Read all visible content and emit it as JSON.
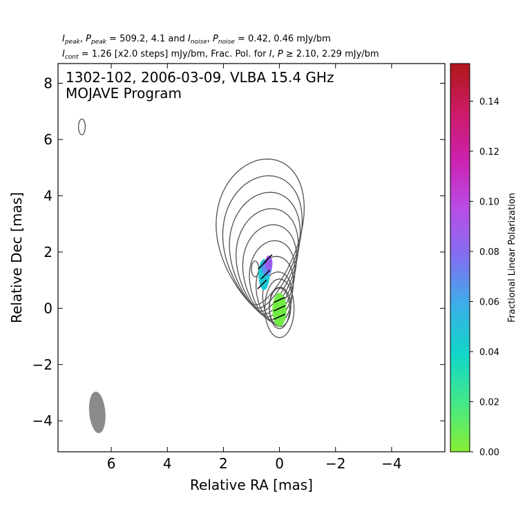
{
  "header": {
    "i_peak_label": "I",
    "i_peak_sub": "peak",
    "p_peak_label": "P",
    "p_peak_sub": "peak",
    "peak_values": "509.2, 4.1",
    "and_text": "and",
    "i_noise_label": "I",
    "i_noise_sub": "noise",
    "p_noise_label": "P",
    "p_noise_sub": "noise",
    "noise_values": "0.42, 0.46 mJy/bm",
    "i_cont_label": "I",
    "i_cont_sub": "cont",
    "cont_text": "= 1.26 [x2.0 steps] mJy/bm, Frac. Pol. for",
    "frac_i": "I",
    "frac_p": "P",
    "frac_values": "2.10, 2.29 mJy/bm"
  },
  "chart_data": {
    "type": "contour",
    "title_line1": "1302-102, 2006-03-09, VLBA 15.4 GHz",
    "title_line2": "MOJAVE Program",
    "xlabel": "Relative RA [mas]",
    "ylabel": "Relative Dec [mas]",
    "xlim": [
      7.9,
      -5.9
    ],
    "ylim": [
      -5.1,
      8.7
    ],
    "x_ticks": [
      6,
      4,
      2,
      0,
      -2,
      -4
    ],
    "x_tick_labels": [
      "6",
      "4",
      "2",
      "0",
      "−2",
      "−4"
    ],
    "y_ticks": [
      8,
      6,
      4,
      2,
      0,
      -2,
      -4
    ],
    "y_tick_labels": [
      "8",
      "6",
      "4",
      "2",
      "0",
      "−2",
      "−4"
    ],
    "colorbar": {
      "label": "Fractional Linear Polarization",
      "min": 0.0,
      "max": 0.155,
      "ticks": [
        0.0,
        0.02,
        0.04,
        0.06,
        0.08,
        0.1,
        0.12,
        0.14
      ],
      "tick_labels": [
        "0.00",
        "0.02",
        "0.04",
        "0.06",
        "0.08",
        "0.10",
        "0.12",
        "0.14"
      ],
      "colors": [
        "#88ee33",
        "#44e888",
        "#11d6c8",
        "#3ab0e8",
        "#8070f0",
        "#b84ee8",
        "#cc22b0",
        "#cc1a66",
        "#b01818"
      ]
    },
    "contour_color": "#505050",
    "core": [
      0.0,
      0.0
    ],
    "secondary_component": [
      0.9,
      1.4
    ],
    "beam": {
      "center": [
        6.5,
        -3.7
      ],
      "major_mas": 1.45,
      "minor_mas": 0.55,
      "pa_deg": -5,
      "color": "#8a8a8a"
    },
    "extra_contour": {
      "center": [
        7.05,
        6.45
      ],
      "major_mas": 0.28,
      "minor_mas": 0.12
    },
    "polarization_regions": [
      {
        "name": "core",
        "center": [
          0.0,
          -0.05
        ],
        "rx": 0.25,
        "ry": 0.6,
        "frac_pol": 0.005,
        "color": "#72ec44"
      },
      {
        "name": "jet-cyan",
        "center": [
          0.55,
          1.2
        ],
        "rx": 0.2,
        "ry": 0.55,
        "frac_pol": 0.045,
        "color": "#1cc9d6"
      },
      {
        "name": "jet-blue",
        "center": [
          0.45,
          1.45
        ],
        "rx": 0.18,
        "ry": 0.3,
        "frac_pol": 0.07,
        "color": "#5f8ef2"
      },
      {
        "name": "jet-violet",
        "center": [
          0.38,
          1.6
        ],
        "rx": 0.13,
        "ry": 0.28,
        "frac_pol": 0.09,
        "color": "#9a5cf0"
      }
    ],
    "evpa_vectors": [
      {
        "x": 0.0,
        "y": 0.3,
        "angle_deg": -25
      },
      {
        "x": 0.0,
        "y": 0.0,
        "angle_deg": -25
      },
      {
        "x": 0.0,
        "y": -0.3,
        "angle_deg": -25
      },
      {
        "x": 0.62,
        "y": 0.85,
        "angle_deg": -45
      },
      {
        "x": 0.5,
        "y": 1.2,
        "angle_deg": -45
      },
      {
        "x": 0.6,
        "y": 1.55,
        "angle_deg": -45
      },
      {
        "x": 0.42,
        "y": 1.75,
        "angle_deg": -45
      }
    ]
  }
}
